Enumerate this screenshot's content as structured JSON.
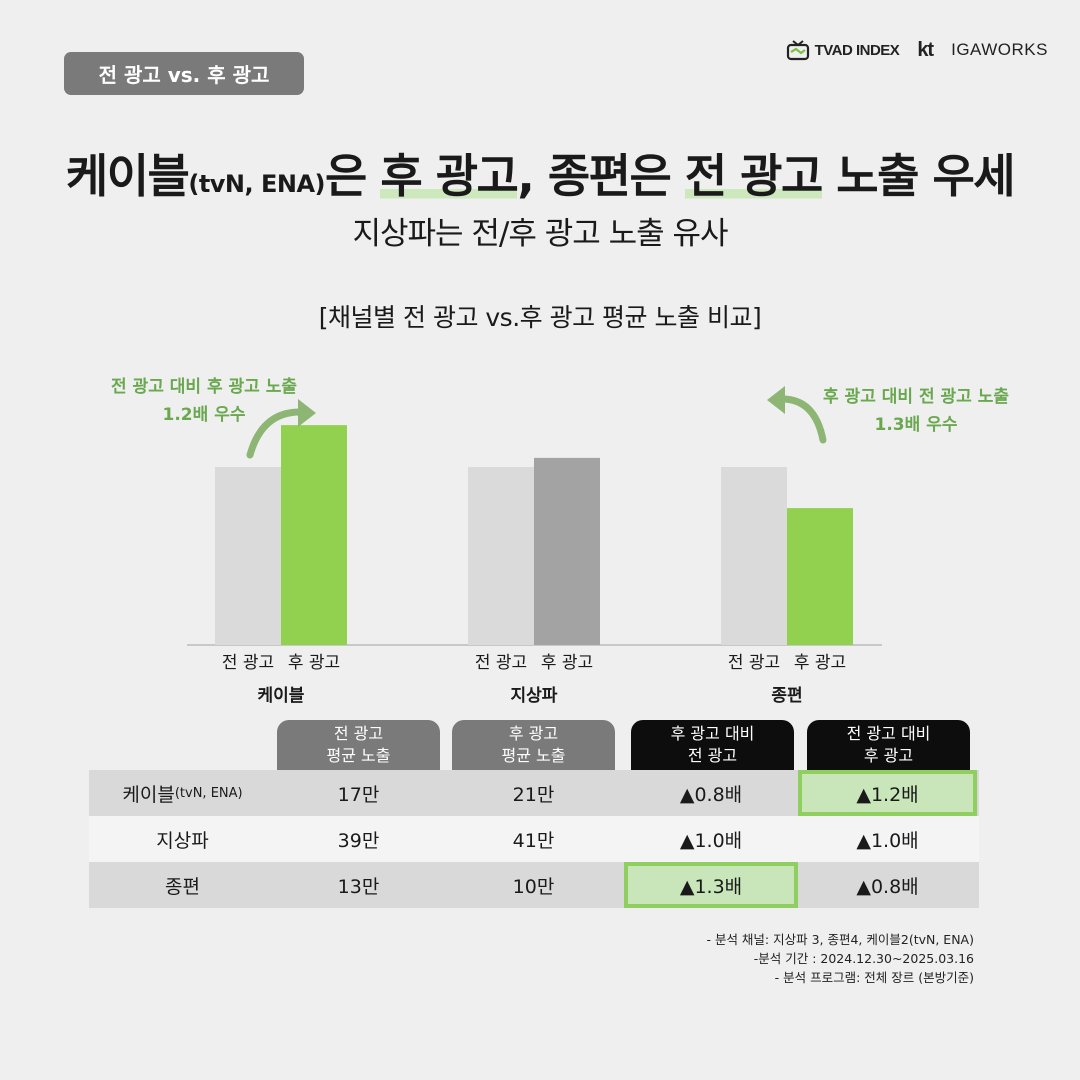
{
  "header": {
    "badge": "전 광고 vs. 후 광고",
    "logos": {
      "tvad": "TVAD INDEX",
      "kt": "kt",
      "igaworks": "IGAWORKS"
    }
  },
  "title": {
    "part1": "케이블",
    "part1_small": "(tvN, ENA)",
    "part2": "은 ",
    "hl1": "후 광고",
    "part3": ", 종편은 ",
    "hl2": "전 광고",
    "part4": " 노출 우세"
  },
  "subtitle": "지상파는 전/후 광고 노출 유사",
  "chart_title": "[채널별 전 광고 vs.후 광고 평균 노출 비교]",
  "colors": {
    "pre_bar": "#dadada",
    "post_default": "#a3a3a3",
    "post_highlight": "#92d050",
    "annotation": "#6aa84f",
    "baseline": "#bbbbbb"
  },
  "chart_data": {
    "type": "bar",
    "title": "[채널별 전 광고 vs.후 광고 평균 노출 비교]",
    "categories": [
      "케이블",
      "지상파",
      "종편"
    ],
    "bar_labels": [
      "전 광고",
      "후 광고"
    ],
    "series": [
      {
        "name": "전 광고",
        "values": [
          17,
          39,
          13
        ]
      },
      {
        "name": "후 광고",
        "values": [
          21,
          41,
          10
        ]
      }
    ],
    "highlight": [
      true,
      false,
      true
    ],
    "annotations": [
      {
        "group": 0,
        "line1": "전 광고 대비 후 광고 노출",
        "line2": "1.2배 우수"
      },
      {
        "group": 2,
        "line1": "후 광고 대비 전 광고 노출",
        "line2": "1.3배 우수"
      }
    ]
  },
  "table": {
    "headers": [
      "전 광고\n평균 노출",
      "후 광고\n평균 노출",
      "후 광고 대비\n전 광고",
      "전 광고 대비\n후 광고"
    ],
    "rows": [
      {
        "channel": "케이블",
        "channel_small": "(tvN, ENA)",
        "pre": "17만",
        "post": "21만",
        "pre_vs_post": "▲0.8배",
        "post_vs_pre": "▲1.2배"
      },
      {
        "channel": "지상파",
        "channel_small": "",
        "pre": "39만",
        "post": "41만",
        "pre_vs_post": "▲1.0배",
        "post_vs_pre": "▲1.0배"
      },
      {
        "channel": "종편",
        "channel_small": "",
        "pre": "13만",
        "post": "10만",
        "pre_vs_post": "▲1.3배",
        "post_vs_pre": "▲0.8배"
      }
    ]
  },
  "notes": [
    "- 분석 채널: 지상파 3, 종편4, 케이블2(tvN, ENA)",
    "-분석 기간 : 2024.12.30~2025.03.16",
    "- 분석 프로그램: 전체 장르 (본방기준)"
  ]
}
